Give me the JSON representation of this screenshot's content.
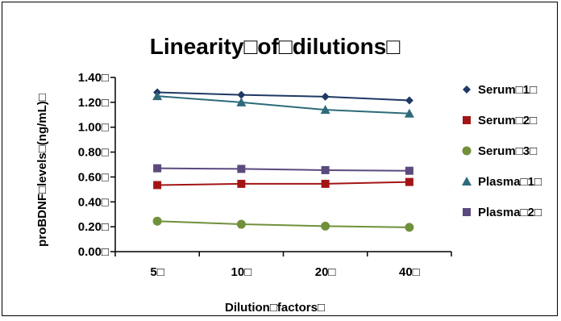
{
  "chart_data": {
    "type": "line",
    "title": "Linearity□of□dilutions□",
    "xlabel": "Dilution□factors□",
    "ylabel": "proBDNF□levels□(ng/mL)□",
    "categories": [
      "5□",
      "10□",
      "20□",
      "40□"
    ],
    "yticks": [
      "0.00□",
      "0.20□",
      "0.40□",
      "0.60□",
      "0.80□",
      "1.00□",
      "1.20□",
      "1.40□"
    ],
    "ylim": [
      0,
      1.4
    ],
    "grid": false,
    "legend_position": "right",
    "series": [
      {
        "name": "Serum□1□",
        "values": [
          1.28,
          1.26,
          1.245,
          1.215
        ],
        "color": "#1f3864",
        "marker": "diamond"
      },
      {
        "name": "Serum□2□",
        "values": [
          0.535,
          0.545,
          0.545,
          0.56
        ],
        "color": "#a31515",
        "marker": "square"
      },
      {
        "name": "Serum□3□",
        "values": [
          0.245,
          0.22,
          0.205,
          0.195
        ],
        "color": "#70903a",
        "marker": "circle"
      },
      {
        "name": "Plasma□1□",
        "values": [
          1.25,
          1.2,
          1.14,
          1.11
        ],
        "color": "#2e6b7a",
        "marker": "triangle"
      },
      {
        "name": "Plasma□2□",
        "values": [
          0.67,
          0.665,
          0.655,
          0.65
        ],
        "color": "#5a4a7e",
        "marker": "square"
      }
    ]
  }
}
